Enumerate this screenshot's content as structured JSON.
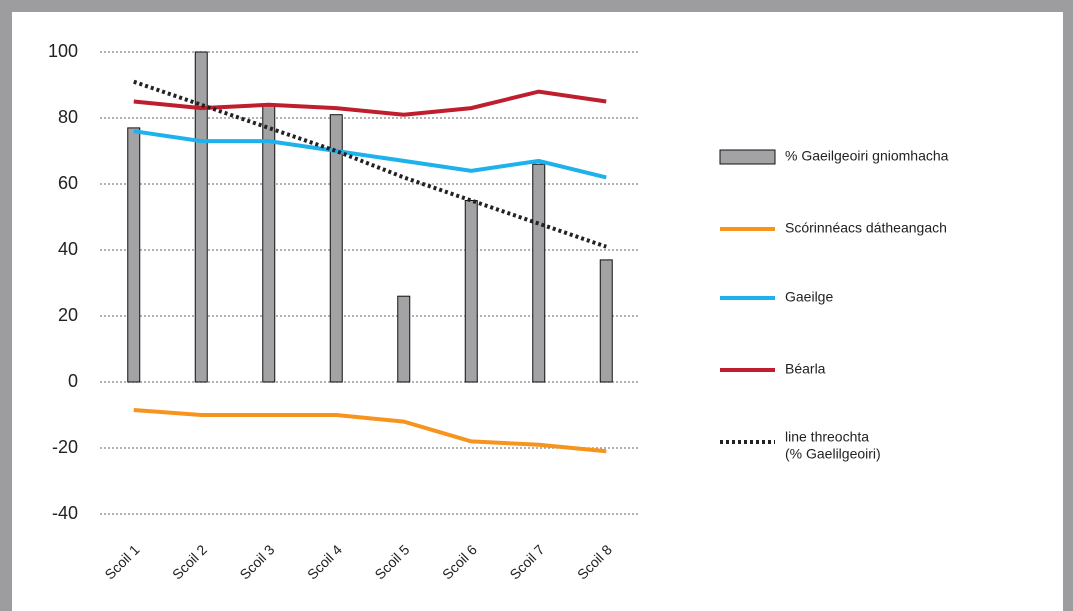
{
  "chart_data": {
    "type": "bar",
    "categories": [
      "Scoil 1",
      "Scoil 2",
      "Scoil 3",
      "Scoil 4",
      "Scoil 5",
      "Scoil 6",
      "Scoil 7",
      "Scoil 8"
    ],
    "series": [
      {
        "name": "% Gaeilgeoiri gniomhacha",
        "type": "bar",
        "color": "#a3a3a6",
        "values": [
          77,
          100,
          84,
          81,
          26,
          55,
          66,
          37
        ]
      },
      {
        "name": "Scórinnéacs dátheangach",
        "type": "line",
        "color": "#f7941d",
        "values": [
          -8.5,
          -10,
          -10,
          -10,
          -12,
          -18,
          -19,
          -21
        ]
      },
      {
        "name": "Gaeilge",
        "type": "line",
        "color": "#1eb1ec",
        "values": [
          76,
          73,
          73,
          70,
          67,
          64,
          67,
          62
        ]
      },
      {
        "name": "Béarla",
        "type": "line",
        "color": "#be1e2d",
        "values": [
          85,
          83,
          84,
          83,
          81,
          83,
          88,
          85
        ]
      },
      {
        "name": [
          "line threochta",
          "(% Gaelilgeoiri)"
        ],
        "type": "dotted",
        "color": "#222222",
        "values": [
          91,
          84,
          77,
          70,
          62,
          55,
          48,
          41
        ]
      }
    ],
    "ylim": [
      -40,
      100
    ],
    "yticks": [
      -40,
      -20,
      0,
      20,
      40,
      60,
      80,
      100
    ],
    "grid": true
  }
}
